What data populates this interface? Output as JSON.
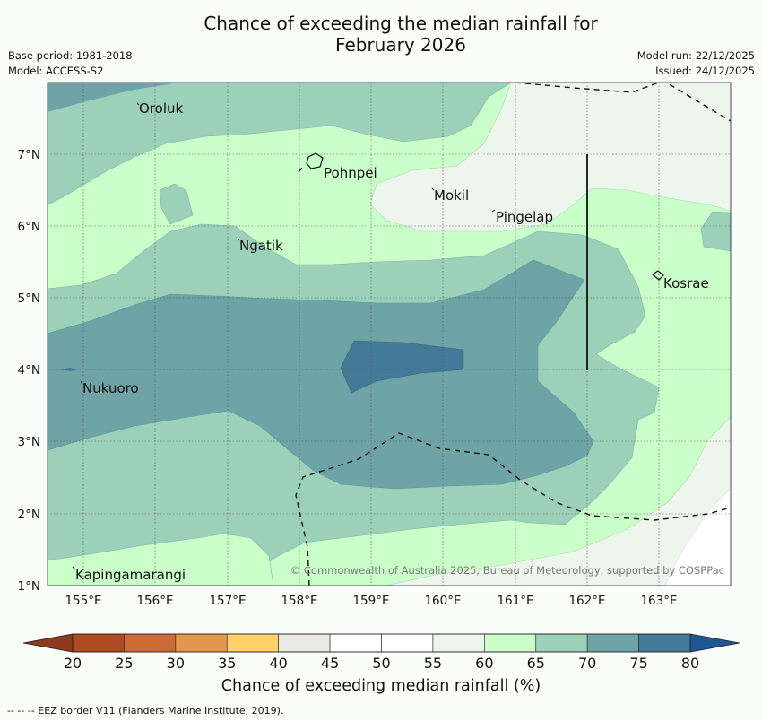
{
  "title_line1": "Chance of exceeding the median rainfall for",
  "title_line2": "February 2026",
  "base_period": "Base period: 1981-2018",
  "model": "Model: ACCESS-S2",
  "model_run": "Model run: 22/12/2025",
  "issued": "Issued: 24/12/2025",
  "map": {
    "lat_labels": [
      "7°N",
      "6°N",
      "5°N",
      "4°N",
      "3°N",
      "2°N",
      "1°N"
    ],
    "lon_labels": [
      "155°E",
      "156°E",
      "157°E",
      "158°E",
      "159°E",
      "160°E",
      "161°E",
      "162°E",
      "163°E"
    ],
    "places": [
      "Oroluk",
      "Pohnpei",
      "Mokil",
      "Pingelap",
      "Ngatik",
      "Kosrae",
      "Nukuoro",
      "Kapingamarangi"
    ],
    "copyright": "© Commonwealth of Australia 2025, Bureau of Meteorology, supported by COSPPac"
  },
  "colorbar": {
    "ticks": [
      "20",
      "25",
      "30",
      "35",
      "40",
      "45",
      "50",
      "55",
      "60",
      "65",
      "70",
      "75",
      "80"
    ],
    "colors": [
      "#b04a25",
      "#cd6a35",
      "#e3984e",
      "#ffd168",
      "#ebe9e6",
      "#ffffff",
      "#ffffff",
      "#edf6ec",
      "#caffca",
      "#9bd1b8",
      "#6fa4a7",
      "#427a98"
    ],
    "low_color": "#8f3a1e",
    "high_color": "#1d5690",
    "label": "Chance of exceeding median rainfall (%)"
  },
  "footnote": "--  --  -- EEZ border V11 (Flanders Marine Institute, 2019)."
}
